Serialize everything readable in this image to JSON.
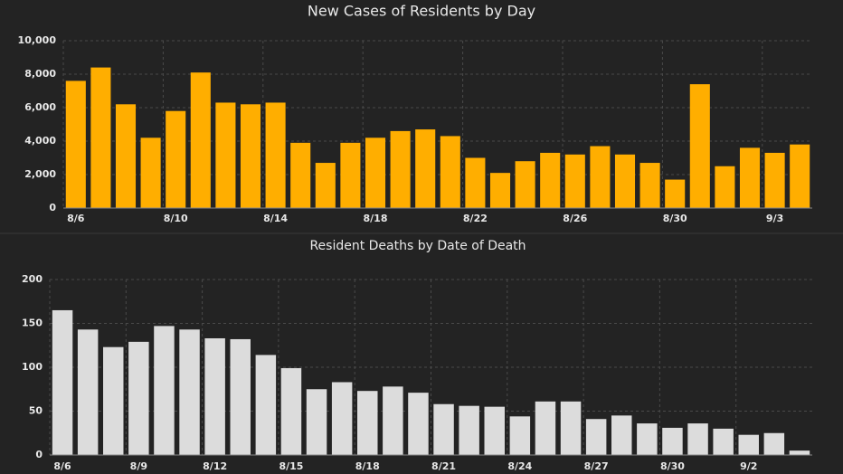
{
  "chart_data": [
    {
      "type": "bar",
      "title": "New Cases of Residents by Day",
      "categories": [
        "8/6",
        null,
        null,
        null,
        "8/10",
        null,
        null,
        null,
        "8/14",
        null,
        null,
        null,
        "8/18",
        null,
        null,
        null,
        "8/22",
        null,
        null,
        null,
        "8/26",
        null,
        null,
        null,
        "8/30",
        null,
        null,
        null,
        "9/3",
        null
      ],
      "values": [
        7600,
        8400,
        6200,
        4200,
        5800,
        8100,
        6300,
        6200,
        6300,
        3900,
        2700,
        3900,
        4200,
        4600,
        4700,
        4300,
        3000,
        2100,
        2800,
        3300,
        3200,
        3700,
        3200,
        2700,
        1700,
        7400,
        2500,
        3600,
        3300,
        3800
      ],
      "color": "#ffae00",
      "ylim": [
        0,
        10000
      ],
      "yticks": [
        0,
        {
          "value": 2000,
          "label": "2,000"
        },
        {
          "value": 4000,
          "label": "4,000"
        },
        {
          "value": 6000,
          "label": "6,000"
        },
        {
          "value": 8000,
          "label": "8,000"
        },
        {
          "value": 10000,
          "label": "10,000"
        }
      ],
      "grid": true
    },
    {
      "type": "bar",
      "title": "Resident Deaths by Date of Death",
      "categories": [
        "8/6",
        null,
        null,
        "8/9",
        null,
        null,
        "8/12",
        null,
        null,
        "8/15",
        null,
        null,
        "8/18",
        null,
        null,
        "8/21",
        null,
        null,
        "8/24",
        null,
        null,
        "8/27",
        null,
        null,
        "8/30",
        null,
        null,
        "9/2",
        null,
        null
      ],
      "values": [
        165,
        143,
        123,
        129,
        147,
        143,
        133,
        132,
        114,
        99,
        75,
        83,
        73,
        78,
        71,
        58,
        56,
        55,
        44,
        61,
        61,
        41,
        45,
        36,
        31,
        36,
        30,
        23,
        25,
        5
      ],
      "color": "#dcdcdc",
      "ylim": [
        0,
        200
      ],
      "yticks": [
        0,
        50,
        100,
        150,
        200
      ],
      "grid": true
    }
  ]
}
